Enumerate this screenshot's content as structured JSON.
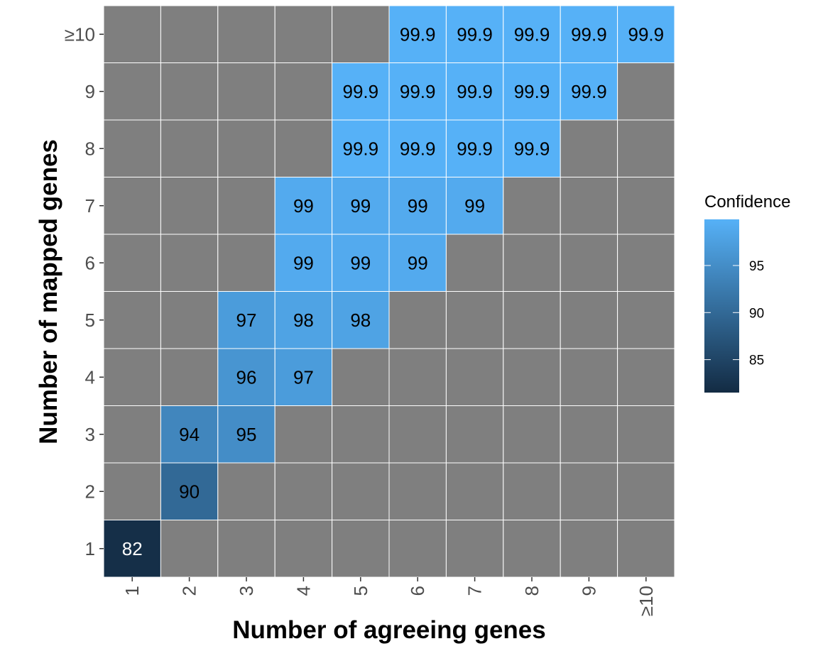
{
  "chart_data": {
    "type": "heatmap",
    "xlabel": "Number of agreeing genes",
    "ylabel": "Number of mapped genes",
    "x_categories": [
      "1",
      "2",
      "3",
      "4",
      "5",
      "6",
      "7",
      "8",
      "9",
      "≥10"
    ],
    "y_categories": [
      "1",
      "2",
      "3",
      "4",
      "5",
      "6",
      "7",
      "8",
      "9",
      "≥10"
    ],
    "cells": [
      {
        "x": "1",
        "y": "1",
        "value": 82,
        "label": "82"
      },
      {
        "x": "2",
        "y": "2",
        "value": 90,
        "label": "90"
      },
      {
        "x": "2",
        "y": "3",
        "value": 94,
        "label": "94"
      },
      {
        "x": "3",
        "y": "3",
        "value": 95,
        "label": "95"
      },
      {
        "x": "3",
        "y": "4",
        "value": 96,
        "label": "96"
      },
      {
        "x": "4",
        "y": "4",
        "value": 97,
        "label": "97"
      },
      {
        "x": "3",
        "y": "5",
        "value": 97,
        "label": "97"
      },
      {
        "x": "4",
        "y": "5",
        "value": 98,
        "label": "98"
      },
      {
        "x": "5",
        "y": "5",
        "value": 98,
        "label": "98"
      },
      {
        "x": "4",
        "y": "6",
        "value": 99,
        "label": "99"
      },
      {
        "x": "5",
        "y": "6",
        "value": 99,
        "label": "99"
      },
      {
        "x": "6",
        "y": "6",
        "value": 99,
        "label": "99"
      },
      {
        "x": "4",
        "y": "7",
        "value": 99,
        "label": "99"
      },
      {
        "x": "5",
        "y": "7",
        "value": 99,
        "label": "99"
      },
      {
        "x": "6",
        "y": "7",
        "value": 99,
        "label": "99"
      },
      {
        "x": "7",
        "y": "7",
        "value": 99,
        "label": "99"
      },
      {
        "x": "5",
        "y": "8",
        "value": 99.9,
        "label": "99.9"
      },
      {
        "x": "6",
        "y": "8",
        "value": 99.9,
        "label": "99.9"
      },
      {
        "x": "7",
        "y": "8",
        "value": 99.9,
        "label": "99.9"
      },
      {
        "x": "8",
        "y": "8",
        "value": 99.9,
        "label": "99.9"
      },
      {
        "x": "5",
        "y": "9",
        "value": 99.9,
        "label": "99.9"
      },
      {
        "x": "6",
        "y": "9",
        "value": 99.9,
        "label": "99.9"
      },
      {
        "x": "7",
        "y": "9",
        "value": 99.9,
        "label": "99.9"
      },
      {
        "x": "8",
        "y": "9",
        "value": 99.9,
        "label": "99.9"
      },
      {
        "x": "9",
        "y": "9",
        "value": 99.9,
        "label": "99.9"
      },
      {
        "x": "6",
        "y": "≥10",
        "value": 99.9,
        "label": "99.9"
      },
      {
        "x": "7",
        "y": "≥10",
        "value": 99.9,
        "label": "99.9"
      },
      {
        "x": "8",
        "y": "≥10",
        "value": 99.9,
        "label": "99.9"
      },
      {
        "x": "9",
        "y": "≥10",
        "value": 99.9,
        "label": "99.9"
      },
      {
        "x": "≥10",
        "y": "≥10",
        "value": 99.9,
        "label": "99.9"
      }
    ],
    "missing_color": "#7f7f7f",
    "grid_line_color": "#ffffff",
    "color_scale": {
      "low": "#132b43",
      "high": "#56b1f7",
      "domain": [
        81.5,
        99.9
      ]
    },
    "legend": {
      "title": "Confidence",
      "position": "right",
      "ticks": [
        85,
        90,
        95
      ]
    }
  }
}
